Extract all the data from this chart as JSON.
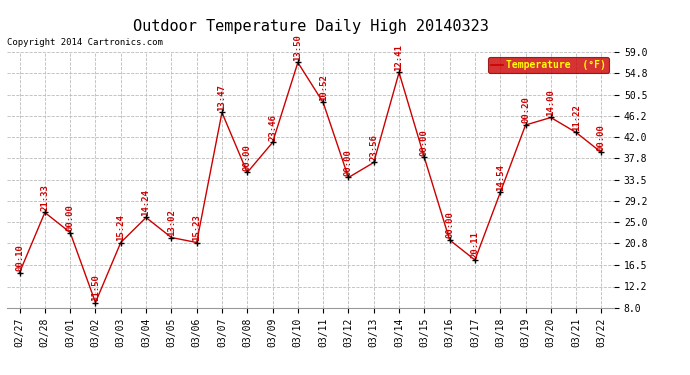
{
  "title": "Outdoor Temperature Daily High 20140323",
  "copyright": "Copyright 2014 Cartronics.com",
  "legend_label": "Temperature  (°F)",
  "dates": [
    "02/27",
    "02/28",
    "03/01",
    "03/02",
    "03/03",
    "03/04",
    "03/05",
    "03/06",
    "03/07",
    "03/08",
    "03/09",
    "03/10",
    "03/11",
    "03/12",
    "03/13",
    "03/14",
    "03/15",
    "03/16",
    "03/17",
    "03/18",
    "03/19",
    "03/20",
    "03/21",
    "03/22"
  ],
  "temps": [
    15.0,
    27.0,
    23.0,
    9.0,
    21.0,
    26.0,
    22.0,
    21.0,
    47.0,
    35.0,
    41.0,
    57.0,
    49.0,
    34.0,
    37.0,
    55.0,
    38.0,
    21.5,
    17.5,
    31.0,
    44.5,
    46.0,
    43.0,
    39.0
  ],
  "time_labels": [
    "00:10",
    "21:33",
    "00:00",
    "11:50",
    "15:24",
    "14:24",
    "13:02",
    "15:23",
    "13:47",
    "00:00",
    "23:46",
    "13:50",
    "10:52",
    "00:00",
    "23:56",
    "12:41",
    "00:00",
    "00:00",
    "20:11",
    "14:54",
    "00:20",
    "14:00",
    "11:22",
    "00:00"
  ],
  "line_color": "#cc0000",
  "marker_color": "#000000",
  "text_color": "#cc0000",
  "bg_color": "#ffffff",
  "grid_color": "#bbbbbb",
  "ylim_min": 8.0,
  "ylim_max": 59.0,
  "yticks": [
    8.0,
    12.2,
    16.5,
    20.8,
    25.0,
    29.2,
    33.5,
    37.8,
    42.0,
    46.2,
    50.5,
    54.8,
    59.0
  ],
  "legend_bg": "#cc0000",
  "legend_text_color": "#ffff00",
  "title_fontsize": 11,
  "tick_fontsize": 7,
  "label_fontsize": 6.5,
  "copyright_fontsize": 6.5
}
